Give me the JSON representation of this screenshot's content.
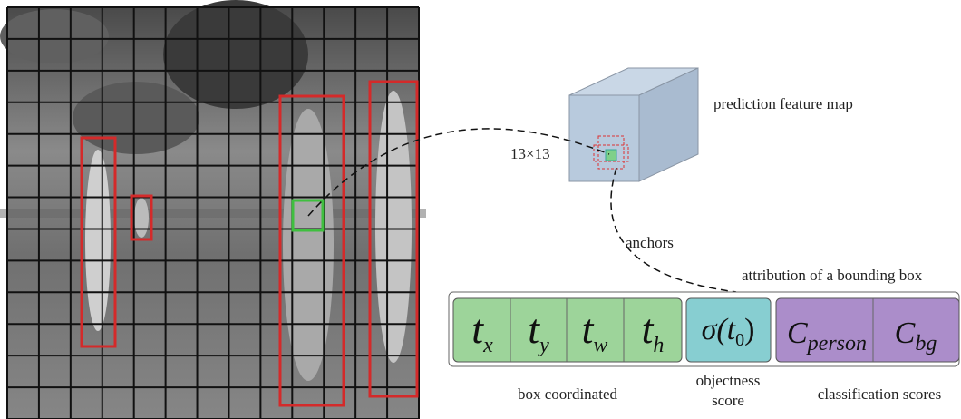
{
  "feature_map": {
    "label": "prediction feature map",
    "grid_size": "13×13",
    "anchors_label": "anchors"
  },
  "bounding_box": {
    "title": "attribution of a bounding box",
    "coordinates": [
      {
        "symbol": "t",
        "sub": "x"
      },
      {
        "symbol": "t",
        "sub": "y"
      },
      {
        "symbol": "t",
        "sub": "w"
      },
      {
        "symbol": "t",
        "sub": "h"
      }
    ],
    "objectness": {
      "pre": "σ(t",
      "sub": "0",
      "post": ")"
    },
    "classes": [
      {
        "symbol": "C",
        "sub": "person"
      },
      {
        "symbol": "C",
        "sub": "bg"
      }
    ],
    "captions": {
      "coordinates": "box coordinated",
      "objectness": [
        "objectness",
        "score"
      ],
      "classes": "classification scores"
    }
  }
}
